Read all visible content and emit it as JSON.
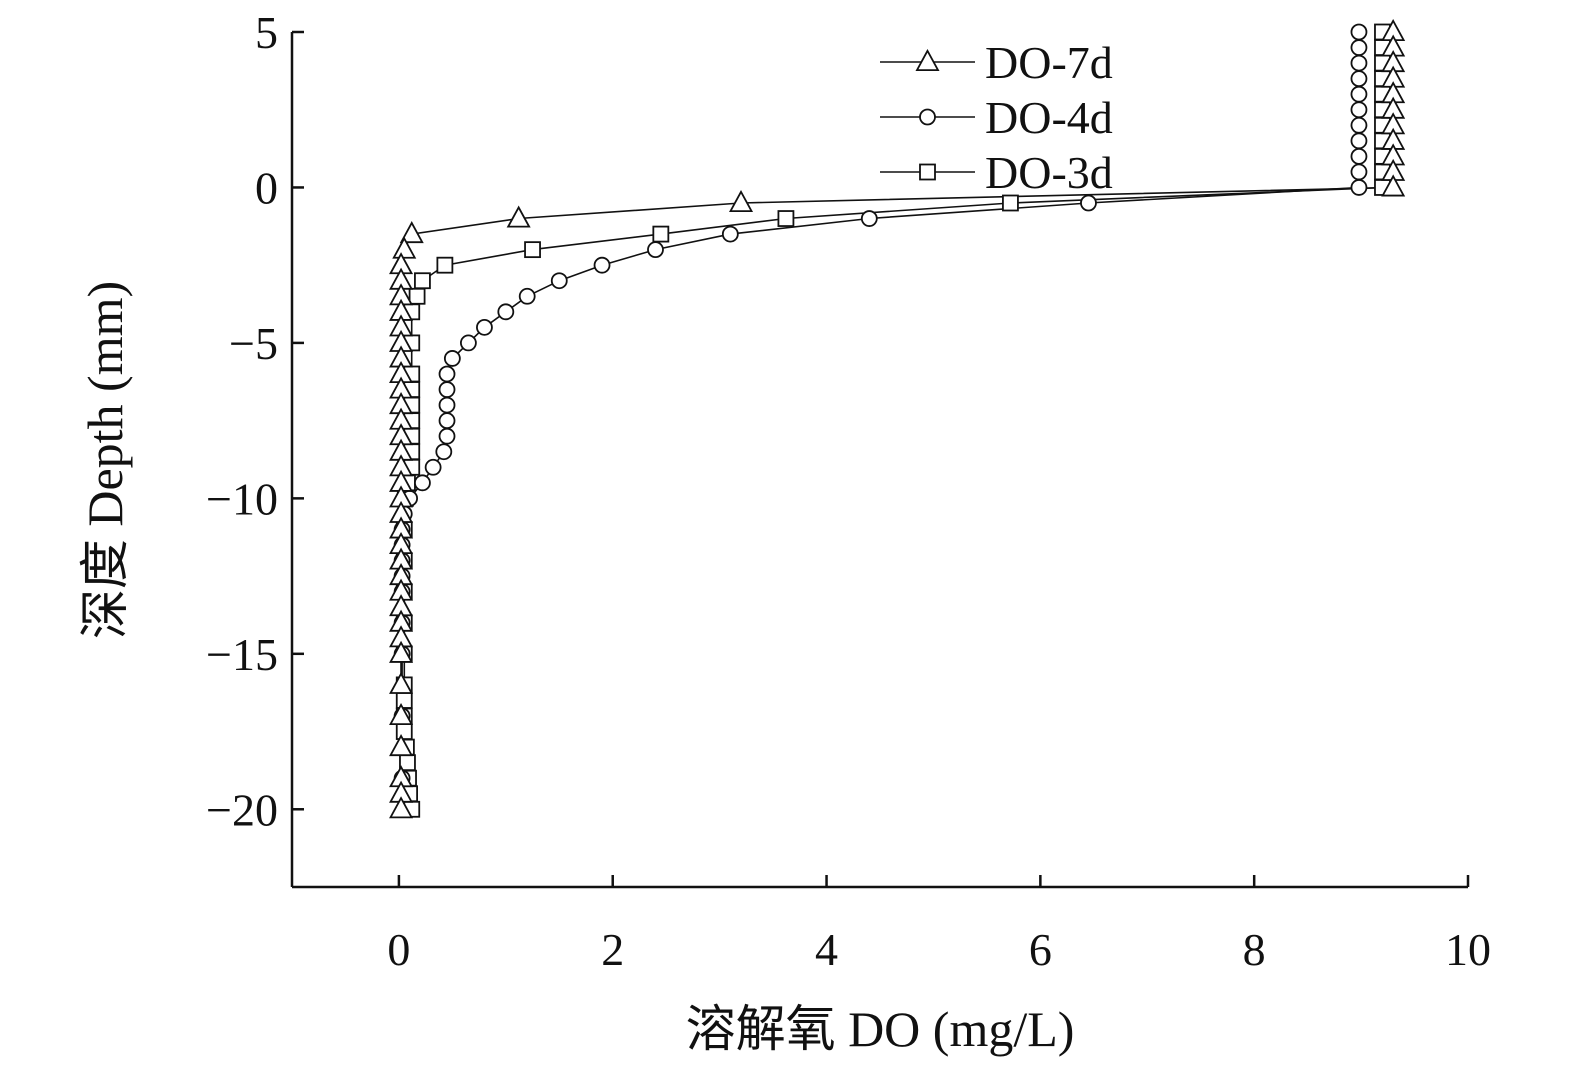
{
  "chart_data": {
    "type": "line",
    "xlabel": "溶解氧 DO (mg/L)",
    "ylabel": "深度 Depth (mm)",
    "xlim": [
      -1,
      10
    ],
    "ylim": [
      -22.5,
      5
    ],
    "xticks": [
      0,
      2,
      4,
      6,
      8,
      10
    ],
    "yticks": [
      5,
      0,
      -5,
      -10,
      -15,
      -20
    ],
    "xtick_labels": [
      "0",
      "2",
      "4",
      "6",
      "8",
      "10"
    ],
    "ytick_labels": [
      "5",
      "0",
      "−5",
      "−10",
      "−15",
      "−20"
    ],
    "legend_position": "top-center",
    "series": [
      {
        "name": "DO-7d",
        "marker": "triangle",
        "x": [
          9.3,
          9.3,
          9.3,
          9.3,
          9.3,
          9.3,
          9.3,
          9.3,
          9.3,
          9.3,
          9.3,
          3.2,
          1.12,
          0.12,
          0.05,
          0.02,
          0.02,
          0.02,
          0.02,
          0.02,
          0.02,
          0.02,
          0.02,
          0.02,
          0.02,
          0.02,
          0.02,
          0.02,
          0.02,
          0.02,
          0.02,
          0.02,
          0.02,
          0.02,
          0.02,
          0.02,
          0.02,
          0.02,
          0.02,
          0.02,
          0.02,
          0.02,
          0.02,
          0.02,
          0.02,
          0.02,
          0.02
        ],
        "y": [
          5,
          4.5,
          4,
          3.5,
          3,
          2.5,
          2,
          1.5,
          1,
          0.5,
          0,
          -0.5,
          -1,
          -1.5,
          -2,
          -2.5,
          -3,
          -3.5,
          -4,
          -4.5,
          -5,
          -5.5,
          -6,
          -6.5,
          -7,
          -7.5,
          -8,
          -8.5,
          -9,
          -9.5,
          -10,
          -10.5,
          -11,
          -11.5,
          -12,
          -12.5,
          -13,
          -13.5,
          -14,
          -14.5,
          -15,
          -16,
          -17,
          -18,
          -19,
          -19.5,
          -20
        ]
      },
      {
        "name": "DO-4d",
        "marker": "circle",
        "x": [
          8.98,
          8.98,
          8.98,
          8.98,
          8.98,
          8.98,
          8.98,
          8.98,
          8.98,
          8.98,
          8.98,
          6.45,
          4.4,
          3.1,
          2.4,
          1.9,
          1.5,
          1.2,
          1.0,
          0.8,
          0.65,
          0.5,
          0.45,
          0.45,
          0.45,
          0.45,
          0.45,
          0.42,
          0.32,
          0.22,
          0.1,
          0.05,
          0.03,
          0.03,
          0.03,
          0.03,
          0.03,
          0.03,
          0.03,
          0.03,
          0.03
        ],
        "y": [
          5,
          4.5,
          4,
          3.5,
          3,
          2.5,
          2,
          1.5,
          1,
          0.5,
          0,
          -0.5,
          -1,
          -1.5,
          -2,
          -2.5,
          -3,
          -3.5,
          -4,
          -4.5,
          -5,
          -5.5,
          -6,
          -6.5,
          -7,
          -7.5,
          -8,
          -8.5,
          -9,
          -9.5,
          -10,
          -10.5,
          -11,
          -11.5,
          -12,
          -12.5,
          -13,
          -14,
          -15,
          -17,
          -19
        ]
      },
      {
        "name": "DO-3d",
        "marker": "square",
        "x": [
          9.2,
          9.2,
          9.2,
          9.2,
          9.2,
          9.2,
          9.2,
          9.2,
          9.2,
          9.2,
          9.2,
          5.72,
          3.62,
          2.45,
          1.25,
          0.43,
          0.22,
          0.17,
          0.12,
          0.12,
          0.12,
          0.12,
          0.12,
          0.12,
          0.12,
          0.12,
          0.12,
          0.08,
          0.06,
          0.05,
          0.05,
          0.05,
          0.05,
          0.05,
          0.05,
          0.05,
          0.05,
          0.05,
          0.07,
          0.08,
          0.09,
          0.1,
          0.12
        ],
        "y": [
          5,
          4.5,
          4,
          3.5,
          3,
          2.5,
          2,
          1.5,
          1,
          0.5,
          0,
          -0.5,
          -1,
          -1.5,
          -2,
          -2.5,
          -3,
          -3.5,
          -4,
          -5,
          -6,
          -6.5,
          -7,
          -7.5,
          -8,
          -8.5,
          -9,
          -9.5,
          -10,
          -11,
          -12,
          -13,
          -14,
          -15,
          -16,
          -16.5,
          -17,
          -17.5,
          -18,
          -18.5,
          -19,
          -19.5,
          -20
        ]
      }
    ]
  }
}
